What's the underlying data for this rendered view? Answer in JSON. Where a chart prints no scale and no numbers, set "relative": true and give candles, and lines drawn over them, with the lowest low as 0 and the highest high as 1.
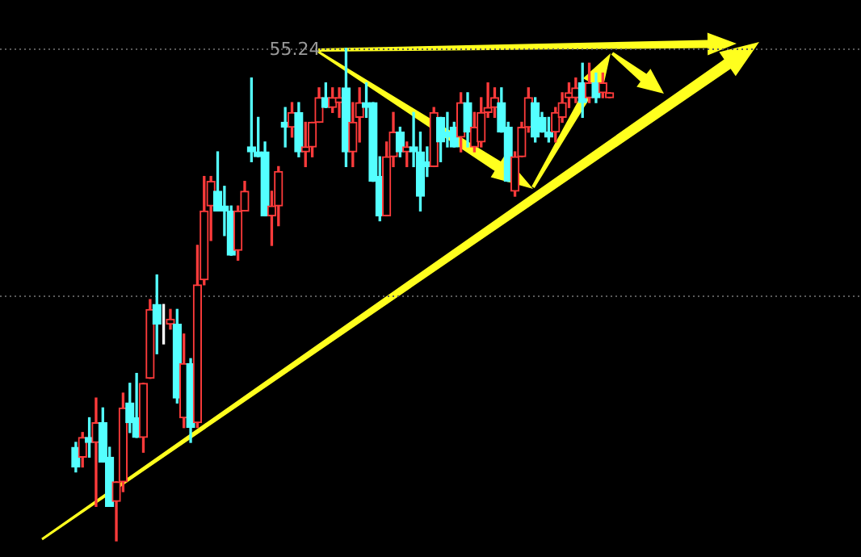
{
  "chart_data": {
    "type": "candlestick",
    "relative": true,
    "categories": [
      null,
      null,
      null,
      null,
      null,
      null,
      null,
      null,
      null,
      null,
      null,
      null,
      null,
      null,
      null,
      null,
      null,
      null,
      null,
      null,
      null,
      null,
      null,
      null,
      null,
      null,
      null,
      null,
      null,
      null,
      null,
      null,
      null,
      null,
      null,
      null,
      null,
      null,
      null,
      null,
      null,
      null,
      null,
      null,
      null,
      null,
      null,
      null,
      null,
      null,
      null,
      null,
      null,
      null,
      null,
      null,
      null,
      null,
      null,
      null,
      null,
      null,
      null,
      null,
      null,
      null,
      null,
      null,
      null,
      null,
      null,
      null,
      null,
      null,
      null,
      null,
      null,
      null,
      null,
      null
    ],
    "ohlc": [
      [
        0.19,
        0.2,
        0.14,
        0.15
      ],
      [
        0.17,
        0.22,
        0.15,
        0.21
      ],
      [
        0.21,
        0.25,
        0.17,
        0.2
      ],
      [
        0.2,
        0.29,
        0.07,
        0.24
      ],
      [
        0.24,
        0.27,
        0.16,
        0.16
      ],
      [
        0.17,
        0.19,
        0.07,
        0.07
      ],
      [
        0.08,
        0.12,
        0,
        0.12
      ],
      [
        0.12,
        0.3,
        0.1,
        0.27
      ],
      [
        0.28,
        0.32,
        0.22,
        0.24
      ],
      [
        0.25,
        0.34,
        0.21,
        0.21
      ],
      [
        0.21,
        0.32,
        0.18,
        0.32
      ],
      [
        0.33,
        0.49,
        0.33,
        0.47
      ],
      [
        0.48,
        0.54,
        0.38,
        0.44
      ],
      [
        0.44,
        0.48,
        0.4,
        0.44
      ],
      [
        0.44,
        0.47,
        0.43,
        0.45
      ],
      [
        0.44,
        0.47,
        0.28,
        0.29
      ],
      [
        0.25,
        0.42,
        0.23,
        0.36
      ],
      [
        0.36,
        0.37,
        0.2,
        0.23
      ],
      [
        0.24,
        0.6,
        0.23,
        0.52
      ],
      [
        0.53,
        0.74,
        0.52,
        0.67
      ],
      [
        0.68,
        0.74,
        0.61,
        0.73
      ],
      [
        0.71,
        0.79,
        0.67,
        0.67
      ],
      [
        0.68,
        0.72,
        0.62,
        0.67
      ],
      [
        0.67,
        0.68,
        0.58,
        0.58
      ],
      [
        0.59,
        0.68,
        0.57,
        0.67
      ],
      [
        0.67,
        0.73,
        0.67,
        0.71
      ],
      [
        0.8,
        0.94,
        0.77,
        0.79
      ],
      [
        0.79,
        0.86,
        0.78,
        0.78
      ],
      [
        0.79,
        0.81,
        0.66,
        0.66
      ],
      [
        0.66,
        0.71,
        0.6,
        0.68
      ],
      [
        0.68,
        0.76,
        0.64,
        0.75
      ],
      [
        0.85,
        0.88,
        0.8,
        0.84
      ],
      [
        0.84,
        0.89,
        0.82,
        0.87
      ],
      [
        0.87,
        0.89,
        0.78,
        0.79
      ],
      [
        0.79,
        0.85,
        0.76,
        0.8
      ],
      [
        0.8,
        0.85,
        0.78,
        0.85
      ],
      [
        0.85,
        0.92,
        0.85,
        0.9
      ],
      [
        0.9,
        0.93,
        0.88,
        0.88
      ],
      [
        0.88,
        0.92,
        0.87,
        0.9
      ],
      [
        0.89,
        0.92,
        0.86,
        0.9
      ],
      [
        0.92,
        1,
        0.76,
        0.79
      ],
      [
        0.79,
        0.89,
        0.76,
        0.85
      ],
      [
        0.86,
        0.92,
        0.81,
        0.89
      ],
      [
        0.89,
        0.93,
        0.86,
        0.88
      ],
      [
        0.89,
        0.89,
        0.73,
        0.73
      ],
      [
        0.74,
        0.78,
        0.65,
        0.66
      ],
      [
        0.66,
        0.81,
        0.66,
        0.78
      ],
      [
        0.78,
        0.87,
        0.76,
        0.83
      ],
      [
        0.83,
        0.84,
        0.78,
        0.79
      ],
      [
        0.79,
        0.81,
        0.76,
        0.8
      ],
      [
        0.8,
        0.87,
        0.76,
        0.79
      ],
      [
        0.79,
        0.83,
        0.67,
        0.7
      ],
      [
        0.77,
        0.8,
        0.74,
        0.76
      ],
      [
        0.76,
        0.88,
        0.76,
        0.87
      ],
      [
        0.86,
        0.86,
        0.77,
        0.81
      ],
      [
        0.83,
        0.87,
        0.8,
        0.82
      ],
      [
        0.84,
        0.85,
        0.8,
        0.8
      ],
      [
        0.82,
        0.91,
        0.79,
        0.89
      ],
      [
        0.89,
        0.91,
        0.8,
        0.83
      ],
      [
        0.8,
        0.87,
        0.79,
        0.84
      ],
      [
        0.81,
        0.9,
        0.8,
        0.87
      ],
      [
        0.87,
        0.93,
        0.86,
        0.88
      ],
      [
        0.88,
        0.92,
        0.86,
        0.9
      ],
      [
        0.89,
        0.92,
        0.83,
        0.83
      ],
      [
        0.84,
        0.85,
        0.73,
        0.73
      ],
      [
        0.71,
        0.79,
        0.7,
        0.78
      ],
      [
        0.78,
        0.85,
        0.78,
        0.84
      ],
      [
        0.84,
        0.92,
        0.83,
        0.9
      ],
      [
        0.89,
        0.9,
        0.81,
        0.82
      ],
      [
        0.86,
        0.87,
        0.83,
        0.83
      ],
      [
        0.83,
        0.86,
        0.81,
        0.82
      ],
      [
        0.83,
        0.88,
        0.81,
        0.87
      ],
      [
        0.86,
        0.91,
        0.85,
        0.89
      ],
      [
        0.9,
        0.93,
        0.88,
        0.91
      ],
      [
        0.9,
        0.94,
        0.89,
        0.92
      ],
      [
        0.93,
        0.97,
        0.86,
        0.89
      ],
      [
        0.9,
        0.97,
        0.89,
        0.93
      ],
      [
        0.93,
        0.95,
        0.89,
        0.9
      ],
      [
        0.91,
        0.95,
        0.9,
        0.93
      ],
      [
        0.9,
        0.91,
        0.9,
        0.91
      ]
    ],
    "colors": [
      "#54ffff",
      "#ff3b3b",
      "#54ffff",
      "#ff3b3b",
      "#54ffff",
      "#54ffff",
      "#ff3b3b",
      "#ff3b3b",
      "#54ffff",
      "#54ffff",
      "#ff3b3b",
      "#ff3b3b",
      "#54ffff",
      "#ffffff",
      "#ff3b3b",
      "#54ffff",
      "#ff3b3b",
      "#54ffff",
      "#ff3b3b",
      "#ff3b3b",
      "#ff3b3b",
      "#54ffff",
      "#54ffff",
      "#54ffff",
      "#ff3b3b",
      "#ff3b3b",
      "#54ffff",
      "#54ffff",
      "#54ffff",
      "#ff3b3b",
      "#ff3b3b",
      "#54ffff",
      "#ff3b3b",
      "#54ffff",
      "#ff3b3b",
      "#ff3b3b",
      "#ff3b3b",
      "#54ffff",
      "#ff3b3b",
      "#ff3b3b",
      "#54ffff",
      "#ff3b3b",
      "#ff3b3b",
      "#54ffff",
      "#54ffff",
      "#54ffff",
      "#ff3b3b",
      "#ff3b3b",
      "#54ffff",
      "#ff3b3b",
      "#54ffff",
      "#54ffff",
      "#54ffff",
      "#ff3b3b",
      "#54ffff",
      "#54ffff",
      "#54ffff",
      "#ff3b3b",
      "#54ffff",
      "#ff3b3b",
      "#ff3b3b",
      "#ff3b3b",
      "#ff3b3b",
      "#54ffff",
      "#54ffff",
      "#ff3b3b",
      "#ff3b3b",
      "#ff3b3b",
      "#54ffff",
      "#54ffff",
      "#54ffff",
      "#ff3b3b",
      "#ff3b3b",
      "#ff3b3b",
      "#ff3b3b",
      "#54ffff",
      "#ff3b3b",
      "#54ffff",
      "#ff3b3b",
      "#ff3b3b"
    ],
    "ref_lines": [
      {
        "axis": "y",
        "value": 1,
        "color": "#5a5a5a",
        "line_style": "dotted"
      },
      {
        "axis": "y",
        "value": 0.5,
        "color": "#5a5a5a",
        "line_style": "dotted"
      }
    ],
    "annotations": [
      {
        "text": "55.24",
        "y": 1
      }
    ]
  }
}
